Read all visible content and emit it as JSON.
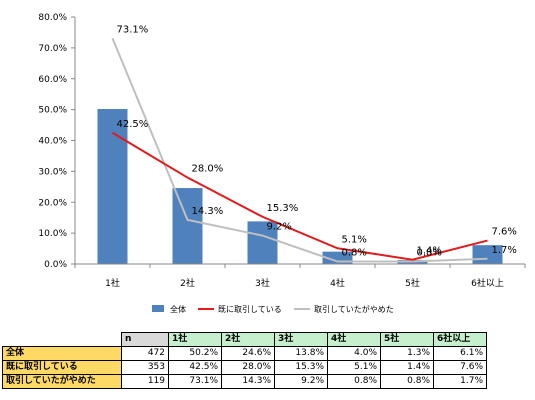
{
  "chart_data": {
    "type": "bar",
    "categories": [
      "1社",
      "2社",
      "3社",
      "4社",
      "5社",
      "6社以上"
    ],
    "ylim": [
      0,
      80
    ],
    "yticks": [
      "0.0%",
      "10.0%",
      "20.0%",
      "30.0%",
      "40.0%",
      "50.0%",
      "60.0%",
      "70.0%",
      "80.0%"
    ],
    "grid": false,
    "legend_position": "bottom",
    "series": [
      {
        "name": "全体",
        "kind": "bar",
        "color": "#4f81bd",
        "values": [
          50.2,
          24.6,
          13.8,
          4.0,
          1.3,
          6.1
        ]
      },
      {
        "name": "既に取引している",
        "kind": "line",
        "color": "#e31a1c",
        "values": [
          42.5,
          28.0,
          15.3,
          5.1,
          1.4,
          7.6
        ],
        "labels": [
          "42.5%",
          "28.0%",
          "15.3%",
          "5.1%",
          "1.4%",
          "7.6%"
        ]
      },
      {
        "name": "取引していたがやめた",
        "kind": "line",
        "color": "#bfbfbf",
        "values": [
          73.1,
          14.3,
          9.2,
          0.8,
          0.8,
          1.7
        ],
        "labels": [
          "73.1%",
          "14.3%",
          "9.2%",
          "0.8%",
          "0.8%",
          "1.7%"
        ]
      }
    ]
  },
  "table": {
    "n_header": "n",
    "col_headers": [
      "1社",
      "2社",
      "3社",
      "4社",
      "5社",
      "6社以上"
    ],
    "rows": [
      {
        "label": "全体",
        "n": "472",
        "values": [
          "50.2%",
          "24.6%",
          "13.8%",
          "4.0%",
          "1.3%",
          "6.1%"
        ]
      },
      {
        "label": "既に取引している",
        "n": "353",
        "values": [
          "42.5%",
          "28.0%",
          "15.3%",
          "5.1%",
          "1.4%",
          "7.6%"
        ]
      },
      {
        "label": "取引していたがやめた",
        "n": "119",
        "values": [
          "73.1%",
          "14.3%",
          "9.2%",
          "0.8%",
          "0.8%",
          "1.7%"
        ]
      }
    ]
  }
}
